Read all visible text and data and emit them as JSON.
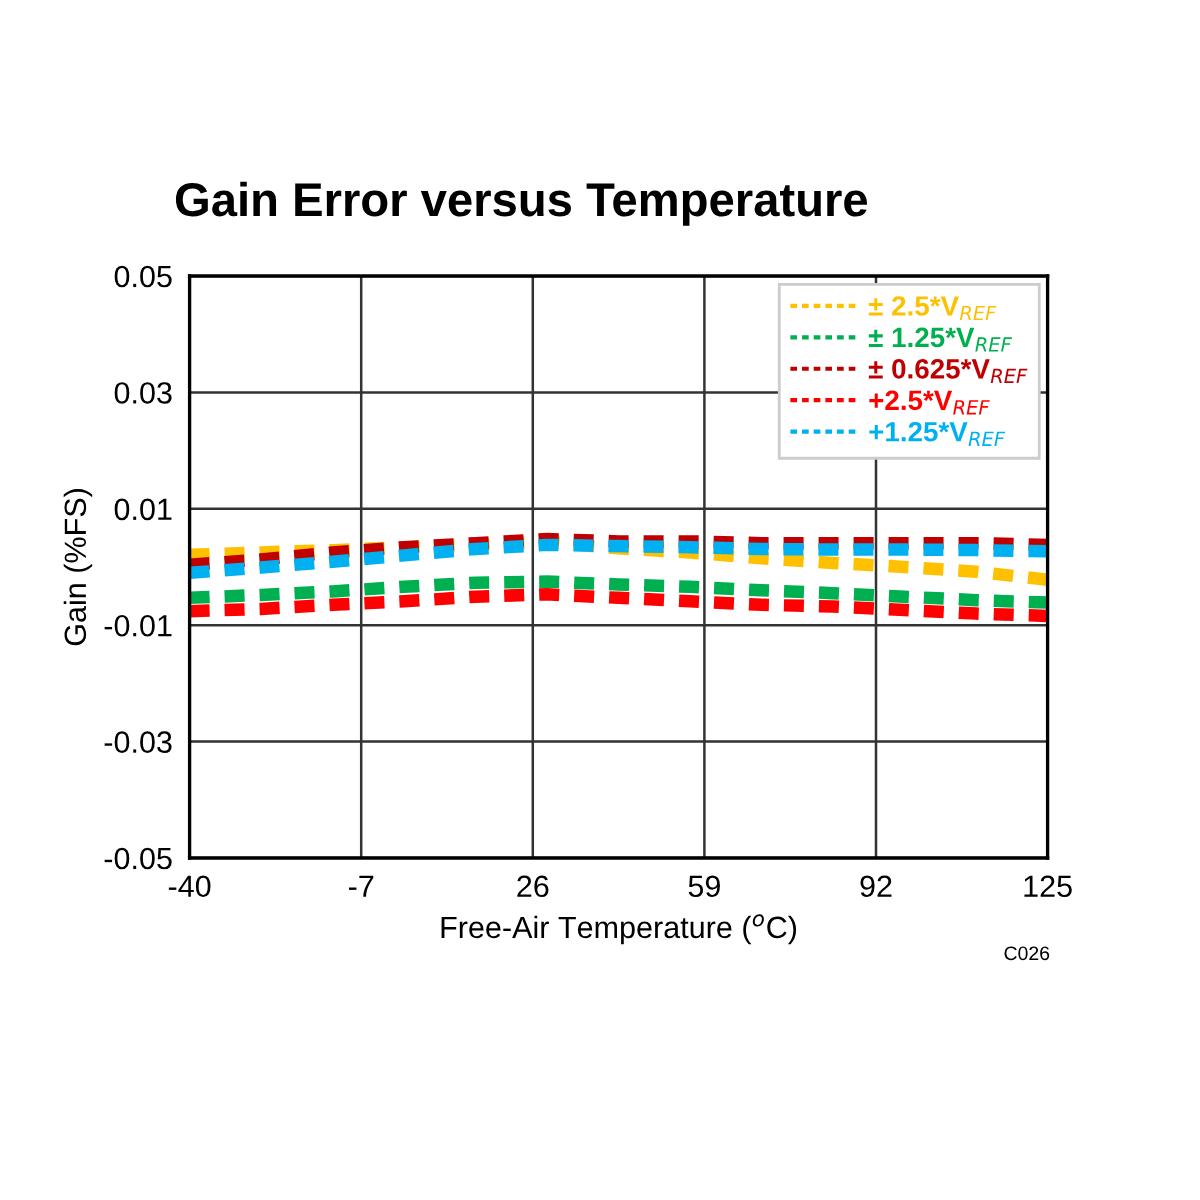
{
  "chart_data": {
    "type": "line",
    "title": "Gain Error versus Temperature",
    "xlabel": "Free-Air Temperature ($^{o}$C)",
    "ylabel": "Gain (%FS)",
    "annotations": [
      "C026"
    ],
    "x": [
      -40,
      -26.25,
      -12.5,
      1.25,
      15,
      28.75,
      42.5,
      56.25,
      70,
      83.75,
      97.5,
      111.25,
      125
    ],
    "series": [
      {
        "name": "± 2.5*V$_{REF}$",
        "color": "#ffc000",
        "values": [
          0.0021,
          0.0025,
          0.0029,
          0.0034,
          0.0038,
          0.0043,
          0.0032,
          0.0025,
          0.0015,
          0.0007,
          0.0,
          -0.0008,
          -0.0022
        ]
      },
      {
        "name": "± 1.25*V$_{REF}$",
        "color": "#00b050",
        "values": [
          -0.0053,
          -0.0048,
          -0.0042,
          -0.0034,
          -0.0027,
          -0.0025,
          -0.003,
          -0.0034,
          -0.004,
          -0.0045,
          -0.0051,
          -0.0057,
          -0.0061
        ]
      },
      {
        "name": "± 0.625*V$_{REF}$",
        "color": "#c00000",
        "values": [
          0.0004,
          0.0013,
          0.0025,
          0.0034,
          0.0041,
          0.0048,
          0.0044,
          0.0044,
          0.0041,
          0.0041,
          0.0041,
          0.0041,
          0.0038
        ]
      },
      {
        "name": "+2.5*V$_{REF}$",
        "color": "#ff0000",
        "values": [
          -0.0076,
          -0.0072,
          -0.0065,
          -0.0059,
          -0.0051,
          -0.0047,
          -0.0053,
          -0.0059,
          -0.0065,
          -0.0068,
          -0.0074,
          -0.008,
          -0.0084
        ]
      },
      {
        "name": "+1.25*V$_{REF}$",
        "color": "#00b0f0",
        "values": [
          -0.001,
          -0.0001,
          0.0009,
          0.002,
          0.0031,
          0.0038,
          0.0036,
          0.0034,
          0.0031,
          0.003,
          0.003,
          0.0029,
          0.0027
        ]
      }
    ],
    "xlim": [
      -40,
      125
    ],
    "xticks": [
      -40,
      -7,
      26,
      59,
      92,
      125
    ],
    "ylim": [
      -0.05,
      0.05
    ],
    "yticks": [
      -0.05,
      -0.03,
      -0.01,
      0.01,
      0.03,
      0.05
    ],
    "grid": true,
    "legend": "top right",
    "line_style": "dashed",
    "marker": "none"
  }
}
